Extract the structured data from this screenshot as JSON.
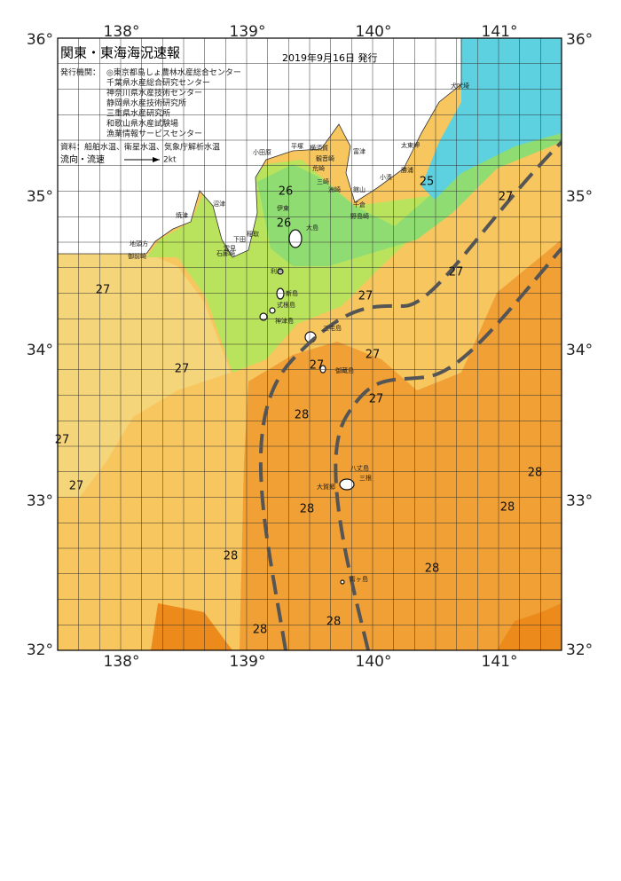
{
  "header": {
    "title": "関東・東海海況速報",
    "date": "2019年9月16日 発行"
  },
  "agencies": {
    "label": "発行機関：",
    "items": [
      "◎東京都島しょ農林水産総合センター",
      "千葉県水産総合研究センター",
      "神奈川県水産技術センター",
      "静岡県水産技術研究所",
      "三重県水産研究所",
      "和歌山県水産試験場",
      "漁業情報サービスセンター"
    ]
  },
  "source": "資料：船舶水温、衛星水温、気象庁解析水温",
  "legend": {
    "label": "流向・流速",
    "speed": "2kt"
  },
  "axes": {
    "lon": [
      "138°",
      "139°",
      "140°",
      "141°"
    ],
    "lat": [
      "36°",
      "35°",
      "34°",
      "33°",
      "32°"
    ]
  },
  "places": [
    "犬吠埼",
    "太東岬",
    "勝浦",
    "小湊",
    "館山",
    "千倉",
    "野島崎",
    "洲崎",
    "富津",
    "観音崎",
    "横須賀",
    "平塚",
    "小田原",
    "三崎",
    "荒崎",
    "伊東",
    "沼津",
    "焼津",
    "地頭方",
    "御前崎",
    "稲取",
    "下田",
    "雲見",
    "石廊崎",
    "大島",
    "利島",
    "新島",
    "式根島",
    "神津島",
    "三宅島",
    "御蔵島",
    "八丈島",
    "三根",
    "大賀郷",
    "青ヶ島"
  ],
  "temperatures": [
    "25",
    "26",
    "26",
    "27",
    "27",
    "27",
    "27",
    "27",
    "27",
    "27",
    "27",
    "28",
    "27",
    "27",
    "28",
    "28",
    "28",
    "28",
    "28",
    "28",
    "28"
  ]
}
